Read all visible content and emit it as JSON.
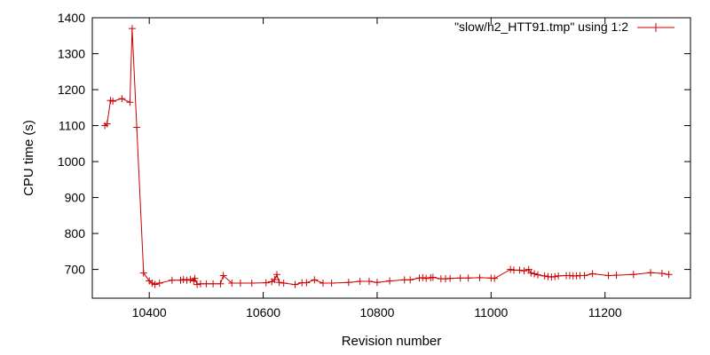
{
  "chart_data": {
    "type": "line",
    "title": "",
    "xlabel": "Revision number",
    "ylabel": "CPU time (s)",
    "xlim": [
      10300,
      11350
    ],
    "ylim": [
      620,
      1400
    ],
    "x_ticks": [
      10400,
      10600,
      10800,
      11000,
      11200
    ],
    "y_ticks": [
      700,
      800,
      900,
      1000,
      1100,
      1200,
      1300,
      1400
    ],
    "grid": false,
    "legend_position": "top-right",
    "series": [
      {
        "name": "\"slow/h2_HTT91.tmp\" using 1:2",
        "color": "#cc0000",
        "marker": "+",
        "x": [
          10322,
          10326,
          10332,
          10336,
          10352,
          10366,
          10370,
          10378,
          10390,
          10400,
          10405,
          10410,
          10418,
          10440,
          10455,
          10460,
          10466,
          10472,
          10478,
          10480,
          10484,
          10490,
          10500,
          10512,
          10525,
          10530,
          10545,
          10560,
          10580,
          10605,
          10615,
          10620,
          10624,
          10628,
          10636,
          10656,
          10668,
          10676,
          10690,
          10705,
          10720,
          10750,
          10770,
          10786,
          10800,
          10822,
          10848,
          10858,
          10874,
          10880,
          10886,
          10894,
          10898,
          10912,
          10920,
          10928,
          10946,
          10960,
          10980,
          11000,
          11006,
          11034,
          11040,
          11050,
          11058,
          11066,
          11070,
          11076,
          11082,
          11094,
          11100,
          11106,
          11112,
          11118,
          11132,
          11138,
          11144,
          11150,
          11156,
          11164,
          11178,
          11206,
          11220,
          11250,
          11280,
          11300,
          11312
        ],
        "values": [
          1100,
          1105,
          1170,
          1168,
          1175,
          1165,
          1370,
          1095,
          690,
          668,
          662,
          658,
          662,
          670,
          670,
          672,
          670,
          672,
          668,
          675,
          658,
          660,
          660,
          660,
          660,
          683,
          662,
          662,
          662,
          663,
          666,
          672,
          686,
          664,
          662,
          658,
          663,
          663,
          671,
          662,
          662,
          664,
          667,
          667,
          664,
          668,
          671,
          671,
          676,
          677,
          675,
          677,
          678,
          674,
          674,
          675,
          676,
          676,
          677,
          676,
          675,
          700,
          698,
          698,
          696,
          700,
          690,
          688,
          685,
          682,
          680,
          679,
          680,
          682,
          683,
          683,
          682,
          682,
          683,
          683,
          688,
          683,
          684,
          686,
          691,
          689,
          686
        ]
      }
    ]
  }
}
